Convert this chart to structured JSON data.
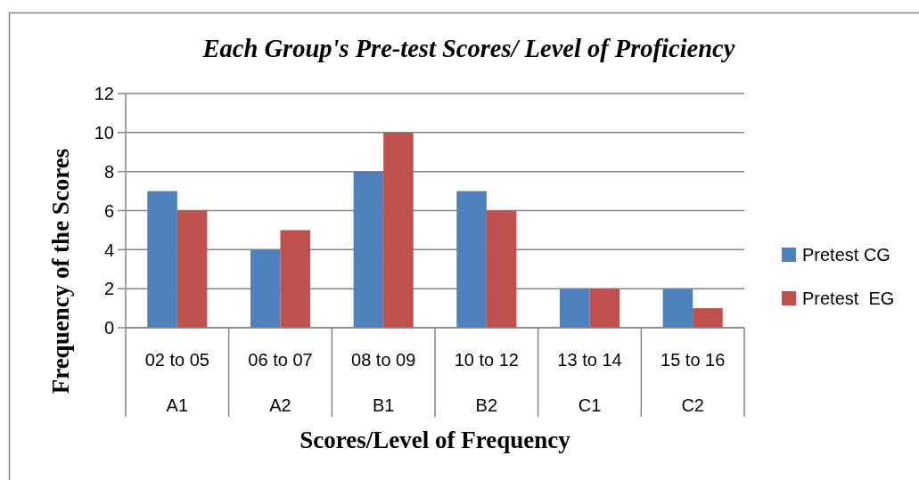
{
  "chart_data": {
    "type": "bar",
    "title": "Each Group's Pre-test Scores/ Level of Proficiency",
    "xlabel": "Scores/Level of Frequency",
    "ylabel": "Frequency of the Scores",
    "categories": [
      "02 to 05\nA1",
      "06 to 07\nA2",
      "08 to 09\nB1",
      "10 to 12\nB2",
      "13 to 14\nC1",
      "15 to 16\nC2"
    ],
    "series": [
      {
        "name": "Pretest CG",
        "color": "#4f81bd",
        "values": [
          7,
          4,
          8,
          7,
          2,
          2
        ]
      },
      {
        "name": "Pretest  EG",
        "color": "#c0504d",
        "values": [
          6,
          5,
          10,
          6,
          2,
          1
        ]
      }
    ],
    "ylim": [
      0,
      12
    ],
    "yticks": [
      0,
      2,
      4,
      6,
      8,
      10,
      12
    ],
    "grid": "y",
    "legend": "right"
  }
}
